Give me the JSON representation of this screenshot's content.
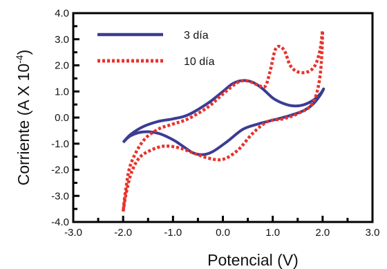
{
  "chart_data": {
    "type": "line",
    "title": "",
    "xlabel": "Potencial (V)",
    "ylabel": "Corriente (A X 10",
    "ylabel_sup": "-4",
    "ylabel_close": ")",
    "xlim": [
      -3.0,
      3.0
    ],
    "ylim": [
      -4.0,
      4.0
    ],
    "x_ticks": [
      "-3.0",
      "-2.0",
      "-1.0",
      "0.0",
      "1.0",
      "2.0",
      "3.0"
    ],
    "y_ticks": [
      "4.0",
      "3.0",
      "2.0",
      "1.0",
      "0.0",
      "-1.0",
      "-2.0",
      "-3.0",
      "-4.0"
    ],
    "grid": false,
    "legend_position": "top-left",
    "series": [
      {
        "name": "3 día",
        "color": "#3b3c93",
        "style": "solid",
        "points": [
          [
            -2.0,
            -0.95
          ],
          [
            -1.85,
            -0.65
          ],
          [
            -1.6,
            -0.35
          ],
          [
            -1.3,
            -0.15
          ],
          [
            -1.0,
            -0.05
          ],
          [
            -0.7,
            0.1
          ],
          [
            -0.3,
            0.55
          ],
          [
            0.0,
            1.0
          ],
          [
            0.2,
            1.3
          ],
          [
            0.4,
            1.42
          ],
          [
            0.6,
            1.35
          ],
          [
            0.8,
            1.1
          ],
          [
            1.0,
            0.75
          ],
          [
            1.2,
            0.55
          ],
          [
            1.4,
            0.45
          ],
          [
            1.6,
            0.48
          ],
          [
            1.8,
            0.65
          ],
          [
            1.95,
            0.9
          ],
          [
            2.02,
            1.1
          ],
          [
            1.95,
            0.85
          ],
          [
            1.8,
            0.5
          ],
          [
            1.6,
            0.25
          ],
          [
            1.3,
            0.05
          ],
          [
            1.0,
            -0.1
          ],
          [
            0.7,
            -0.25
          ],
          [
            0.4,
            -0.45
          ],
          [
            0.1,
            -0.9
          ],
          [
            -0.2,
            -1.3
          ],
          [
            -0.4,
            -1.42
          ],
          [
            -0.6,
            -1.35
          ],
          [
            -0.8,
            -1.1
          ],
          [
            -1.0,
            -0.85
          ],
          [
            -1.3,
            -0.6
          ],
          [
            -1.6,
            -0.55
          ],
          [
            -1.85,
            -0.7
          ],
          [
            -2.0,
            -0.95
          ]
        ]
      },
      {
        "name": "10 día",
        "color": "#e8322b",
        "style": "dotted",
        "points": [
          [
            -2.0,
            -3.6
          ],
          [
            -1.95,
            -3.0
          ],
          [
            -1.85,
            -2.2
          ],
          [
            -1.7,
            -1.6
          ],
          [
            -1.5,
            -1.3
          ],
          [
            -1.2,
            -1.1
          ],
          [
            -0.9,
            -1.15
          ],
          [
            -0.6,
            -1.35
          ],
          [
            -0.3,
            -1.55
          ],
          [
            0.0,
            -1.6
          ],
          [
            0.3,
            -1.25
          ],
          [
            0.6,
            -0.6
          ],
          [
            0.9,
            -0.15
          ],
          [
            1.2,
            -0.05
          ],
          [
            1.5,
            0.15
          ],
          [
            1.8,
            0.55
          ],
          [
            1.95,
            1.6
          ],
          [
            2.0,
            3.3
          ],
          [
            1.95,
            2.6
          ],
          [
            1.85,
            2.0
          ],
          [
            1.7,
            1.75
          ],
          [
            1.5,
            1.75
          ],
          [
            1.35,
            2.0
          ],
          [
            1.25,
            2.5
          ],
          [
            1.15,
            2.72
          ],
          [
            1.05,
            2.6
          ],
          [
            0.95,
            1.8
          ],
          [
            0.85,
            1.2
          ],
          [
            0.7,
            1.25
          ],
          [
            0.5,
            1.4
          ],
          [
            0.3,
            1.35
          ],
          [
            0.0,
            0.9
          ],
          [
            -0.3,
            0.4
          ],
          [
            -0.7,
            -0.05
          ],
          [
            -1.0,
            -0.25
          ],
          [
            -1.3,
            -0.45
          ],
          [
            -1.6,
            -0.9
          ],
          [
            -1.85,
            -1.8
          ],
          [
            -1.95,
            -2.8
          ],
          [
            -2.0,
            -3.6
          ]
        ]
      }
    ]
  }
}
